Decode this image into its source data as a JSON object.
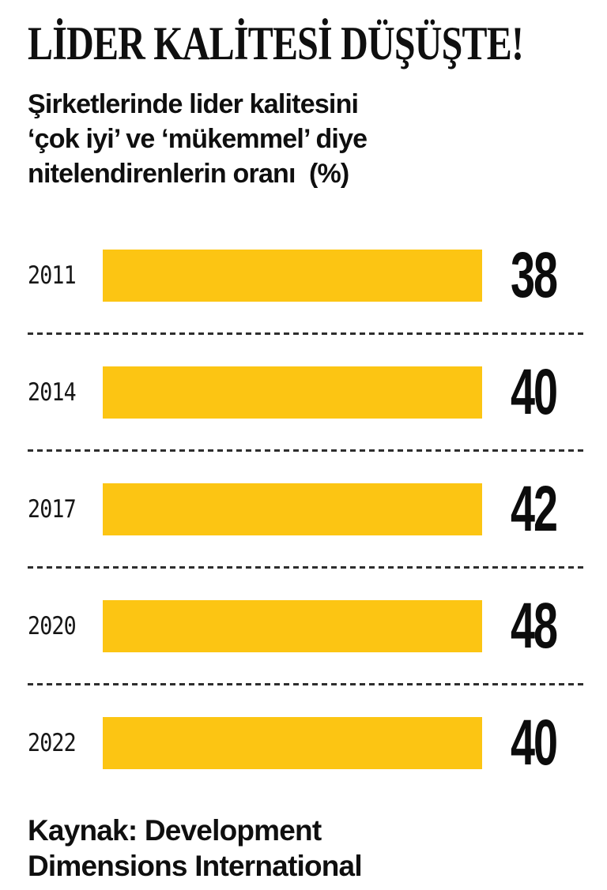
{
  "title": "LİDER KALİTESİ DÜŞÜŞTE!",
  "subtitle_lines": [
    "Şirketlerinde lider kalitesini",
    "‘çok iyi’ ve ‘mükemmel’ diye",
    "nitelendirenlerin oranı  (%)"
  ],
  "source_lines": [
    "Kaynak: Development",
    "Dimensions International"
  ],
  "colors": {
    "bar_yellow": "#FCC513",
    "ink": "#0F0F0F",
    "separator": "#2E2E2E",
    "background": "#FFFFFF"
  },
  "chart_data": {
    "type": "bar",
    "orientation": "horizontal",
    "title": "LİDER KALİTESİ DÜŞÜŞTE!",
    "subtitle": "Şirketlerinde lider kalitesini ‘çok iyi’ ve ‘mükemmel’ diye nitelendirenlerin oranı (%)",
    "unit": "%",
    "categories": [
      "2011",
      "2014",
      "2017",
      "2020",
      "2022"
    ],
    "values": [
      38,
      40,
      42,
      48,
      40
    ],
    "source": "Kaynak: Development Dimensions International",
    "layout_hints": {
      "bar_color": "#FCC513",
      "equal_bar_lengths": true,
      "value_labels_position": "right-of-bar",
      "category_labels_position": "left-of-bar",
      "dashed_separators_between_rows": true,
      "grid": false,
      "legend": false,
      "axes_hidden": true
    }
  }
}
